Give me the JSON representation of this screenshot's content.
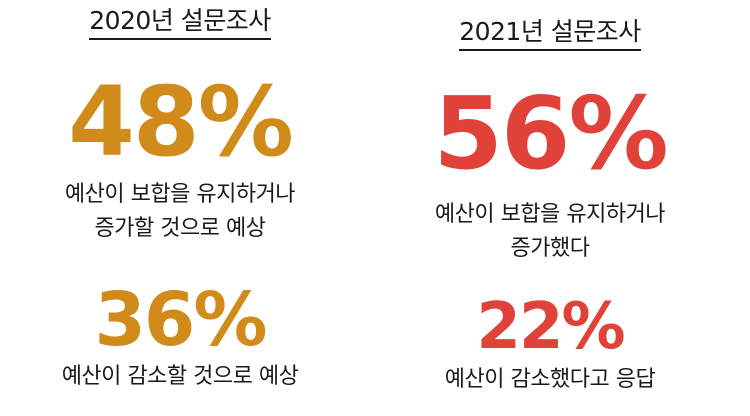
{
  "colors": {
    "survey_2020_accent": "#d18b1a",
    "survey_2021_accent": "#e0423a",
    "text": "#1a1a1a"
  },
  "survey_2020": {
    "heading": "2020년 설문조사",
    "stat_1": {
      "percent": "48%",
      "caption_line_1": "예산이 보합을 유지하거나",
      "caption_line_2": "증가할 것으로 예상"
    },
    "stat_2": {
      "percent": "36%",
      "caption_line_1": "예산이 감소할 것으로 예상"
    }
  },
  "survey_2021": {
    "heading": "2021년 설문조사",
    "stat_1": {
      "percent": "56%",
      "caption_line_1": "예산이 보합을 유지하거나",
      "caption_line_2": "증가했다"
    },
    "stat_2": {
      "percent": "22%",
      "caption_line_1": "예산이 감소했다고 응답"
    }
  }
}
